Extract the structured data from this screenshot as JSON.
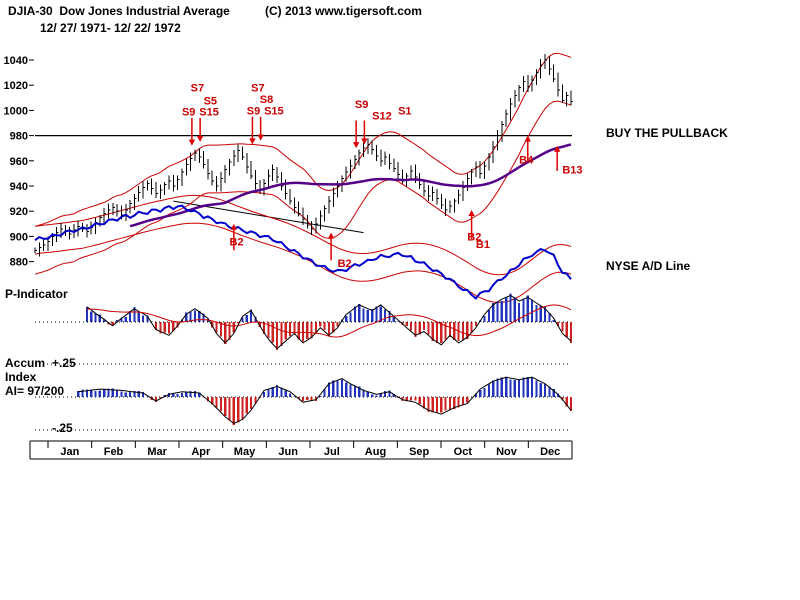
{
  "header": {
    "title": "DJIA-30  Dow Jones Industrial Average",
    "date_range": "12/ 27/ 1971- 12/ 22/ 1972",
    "copyright": "(C) 2013 www.tigersoft.com"
  },
  "labels": {
    "buy_pullback": "BUY THE PULLBACK",
    "nyse_ad_line": "NYSE A/D Line",
    "p_indicator": "P-Indicator",
    "accum": "Accum",
    "plus25": "+.25",
    "index_word": "Index",
    "ai_reading": "AI= 97/200",
    "minus25": "-.25"
  },
  "colors": {
    "bar": "#000000",
    "band": "#cc0000",
    "ad": "#0000cc",
    "ma": "#550088",
    "pos": "#2233bb",
    "neg": "#cc2222",
    "signal": "#dd0000"
  },
  "chart_data": [
    {
      "type": "bar",
      "subtype": "daily-ohlc-price-bars",
      "title": "DJIA-30 Dow Jones Industrial Average",
      "date_range": "12/ 27/ 1971- 12/ 22/ 1972",
      "ylim": [
        870,
        1055
      ],
      "yticks": [
        1040,
        1020,
        1000,
        980,
        960,
        940,
        920,
        900,
        880
      ],
      "x_months": [
        "Jan",
        "Feb",
        "Mar",
        "Apr",
        "May",
        "Jun",
        "Jul",
        "Aug",
        "Sep",
        "Oct",
        "Nov",
        "Dec"
      ],
      "horizontal_line": 980,
      "trendline": {
        "from_index": 32,
        "from_price": 928,
        "to_index": 76,
        "to_price": 903
      },
      "series": [
        {
          "name": "DJIA-30 close",
          "values": [
            889,
            891,
            893,
            896,
            900,
            903,
            906,
            904,
            902,
            905,
            908,
            906,
            904,
            907,
            911,
            915,
            918,
            921,
            923,
            920,
            917,
            921,
            926,
            930,
            935,
            939,
            942,
            938,
            934,
            937,
            941,
            944,
            940,
            945,
            951,
            957,
            962,
            966,
            963,
            957,
            950,
            944,
            940,
            946,
            953,
            959,
            964,
            968,
            963,
            955,
            948,
            942,
            937,
            942,
            948,
            953,
            947,
            940,
            934,
            928,
            923,
            918,
            914,
            909,
            906,
            910,
            916,
            922,
            928,
            934,
            940,
            946,
            951,
            956,
            961,
            966,
            970,
            973,
            969,
            964,
            960,
            963,
            958,
            954,
            949,
            944,
            948,
            952,
            947,
            941,
            936,
            932,
            935,
            930,
            925,
            921,
            924,
            928,
            933,
            939,
            946,
            951,
            955,
            950,
            956,
            963,
            971,
            980,
            989,
            997,
            1005,
            1012,
            1018,
            1023,
            1019,
            1024,
            1030,
            1036,
            1040,
            1033,
            1025,
            1016,
            1008,
            1012,
            1007
          ]
        },
        {
          "name": "NYSE A/D Line (overlay, price-scale)",
          "values": [
            897,
            898,
            899,
            899,
            900,
            901,
            902,
            903,
            904,
            905,
            905,
            906,
            907,
            908,
            909,
            910,
            911,
            912,
            913,
            914,
            915,
            916,
            916,
            917,
            918,
            919,
            919,
            920,
            921,
            921,
            922,
            923,
            923,
            924,
            923,
            922,
            921,
            919,
            918,
            916,
            915,
            913,
            912,
            911,
            909,
            908,
            907,
            906,
            905,
            904,
            903,
            902,
            901,
            900,
            899,
            898,
            896,
            894,
            892,
            890,
            888,
            886,
            884,
            882,
            880,
            878,
            877,
            875,
            874,
            873,
            872,
            873,
            874,
            875,
            877,
            878,
            879,
            880,
            882,
            883,
            884,
            884,
            885,
            885,
            886,
            886,
            884,
            883,
            881,
            880,
            878,
            876,
            874,
            872,
            870,
            868,
            866,
            863,
            861,
            858,
            856,
            854,
            852,
            854,
            856,
            858,
            861,
            864,
            867,
            869,
            872,
            875,
            878,
            881,
            883,
            886,
            887,
            889,
            890,
            887,
            884,
            878,
            872,
            869,
            866
          ]
        }
      ],
      "signals": [
        {
          "label": "S7",
          "i": 36,
          "price": 1018
        },
        {
          "label": "S5",
          "i": 39,
          "price": 1008
        },
        {
          "label": "S9",
          "i": 34,
          "price": 999
        },
        {
          "label": "S15",
          "i": 38,
          "price": 999
        },
        {
          "label": "S7",
          "i": 50,
          "price": 1018
        },
        {
          "label": "S8",
          "i": 52,
          "price": 1009
        },
        {
          "label": "S9",
          "i": 49,
          "price": 1000
        },
        {
          "label": "S15",
          "i": 53,
          "price": 1000
        },
        {
          "label": "S9",
          "i": 74,
          "price": 1005
        },
        {
          "label": "S12",
          "i": 78,
          "price": 996
        },
        {
          "label": "S1",
          "i": 84,
          "price": 1000
        },
        {
          "label": "B4",
          "i": 112,
          "price": 961
        },
        {
          "label": "B13",
          "i": 122,
          "price": 953
        },
        {
          "label": "B2",
          "i": 45,
          "price": 896
        },
        {
          "label": "B2",
          "i": 70,
          "price": 879
        },
        {
          "label": "B2",
          "i": 100,
          "price": 900
        },
        {
          "label": "B1",
          "i": 102,
          "price": 894
        }
      ],
      "arrows": [
        {
          "i": 36.3,
          "from": 994,
          "to": 976,
          "dir": "down"
        },
        {
          "i": 38.2,
          "from": 994,
          "to": 979,
          "dir": "down"
        },
        {
          "i": 50.3,
          "from": 995,
          "to": 977,
          "dir": "down"
        },
        {
          "i": 52.2,
          "from": 995,
          "to": 980,
          "dir": "down"
        },
        {
          "i": 74.3,
          "from": 992,
          "to": 974,
          "dir": "down"
        },
        {
          "i": 76.2,
          "from": 992,
          "to": 977,
          "dir": "down"
        },
        {
          "i": 46,
          "from": 889,
          "to": 906,
          "dir": "up"
        },
        {
          "i": 68.5,
          "from": 881,
          "to": 899,
          "dir": "up"
        },
        {
          "i": 101,
          "from": 898,
          "to": 917,
          "dir": "up"
        },
        {
          "i": 114,
          "from": 960,
          "to": 976,
          "dir": "up"
        },
        {
          "i": 120.8,
          "from": 952,
          "to": 968,
          "dir": "up"
        }
      ]
    },
    {
      "type": "bar",
      "title": "P-Indicator",
      "zero_line": 0,
      "values": [
        0.1,
        0.14,
        0.18,
        0.22,
        0.26,
        0.3,
        0.38,
        0.47,
        0.55,
        0.51,
        0.47,
        0.44,
        0.4,
        0.32,
        0.23,
        0.15,
        0.07,
        -0.02,
        -0.1,
        0.0,
        0.1,
        0.18,
        0.27,
        0.35,
        0.28,
        0.22,
        0.15,
        -0.03,
        -0.2,
        -0.25,
        -0.3,
        -0.35,
        -0.23,
        -0.1,
        0.05,
        0.2,
        0.28,
        0.35,
        0.27,
        0.18,
        0.1,
        -0.1,
        -0.3,
        -0.43,
        -0.55,
        -0.43,
        -0.3,
        -0.08,
        0.15,
        0.23,
        0.3,
        0.1,
        -0.1,
        -0.28,
        -0.45,
        -0.58,
        -0.7,
        -0.6,
        -0.5,
        -0.4,
        -0.3,
        -0.43,
        -0.55,
        -0.48,
        -0.4,
        -0.28,
        -0.15,
        -0.25,
        -0.35,
        -0.25,
        -0.15,
        0.03,
        0.2,
        0.28,
        0.37,
        0.45,
        0.4,
        0.35,
        0.3,
        0.38,
        0.45,
        0.35,
        0.25,
        0.15,
        0.05,
        -0.05,
        -0.15,
        -0.25,
        -0.35,
        -0.3,
        -0.25,
        -0.35,
        -0.45,
        -0.53,
        -0.6,
        -0.48,
        -0.35,
        -0.45,
        -0.55,
        -0.48,
        -0.4,
        -0.28,
        -0.15,
        0.03,
        0.2,
        0.33,
        0.45,
        0.53,
        0.6,
        0.65,
        0.7,
        0.63,
        0.55,
        0.6,
        0.65,
        0.58,
        0.5,
        0.43,
        0.35,
        0.23,
        0.1,
        -0.1,
        -0.3,
        -0.4,
        -0.5
      ]
    },
    {
      "type": "bar",
      "title": "Tiger Accumulation Index",
      "ai_reading": "AI= 97/200",
      "ylim": [
        -0.25,
        0.25
      ],
      "gridlines": [
        0.25,
        0,
        -0.25
      ],
      "values": [
        0.03,
        0.034,
        0.038,
        0.042,
        0.046,
        0.05,
        0.048,
        0.046,
        0.044,
        0.042,
        0.04,
        0.044,
        0.048,
        0.052,
        0.056,
        0.06,
        0.058,
        0.056,
        0.054,
        0.052,
        0.05,
        0.046,
        0.042,
        0.038,
        0.034,
        0.03,
        0.01,
        -0.01,
        -0.03,
        -0.013,
        0.003,
        0.02,
        0.027,
        0.033,
        0.04,
        0.038,
        0.035,
        0.033,
        0.03,
        0.003,
        -0.023,
        -0.05,
        -0.083,
        -0.117,
        -0.15,
        -0.175,
        -0.2,
        -0.185,
        -0.17,
        -0.135,
        -0.1,
        -0.05,
        0.0,
        0.05,
        0.06,
        0.07,
        0.08,
        0.067,
        0.053,
        0.04,
        0.013,
        -0.013,
        -0.04,
        -0.033,
        -0.027,
        -0.02,
        0.02,
        0.06,
        0.1,
        0.113,
        0.127,
        0.14,
        0.12,
        0.1,
        0.083,
        0.067,
        0.05,
        0.04,
        0.03,
        0.02,
        0.027,
        0.033,
        0.04,
        0.02,
        0.0,
        -0.02,
        -0.027,
        -0.033,
        -0.04,
        -0.06,
        -0.08,
        -0.1,
        -0.11,
        -0.12,
        -0.13,
        -0.113,
        -0.097,
        -0.08,
        -0.07,
        -0.06,
        -0.05,
        -0.013,
        0.023,
        0.06,
        0.08,
        0.1,
        0.12,
        0.13,
        0.14,
        0.15,
        0.143,
        0.137,
        0.13,
        0.137,
        0.143,
        0.15,
        0.133,
        0.117,
        0.1,
        0.073,
        0.047,
        0.02,
        -0.02,
        -0.06,
        -0.1
      ]
    }
  ]
}
